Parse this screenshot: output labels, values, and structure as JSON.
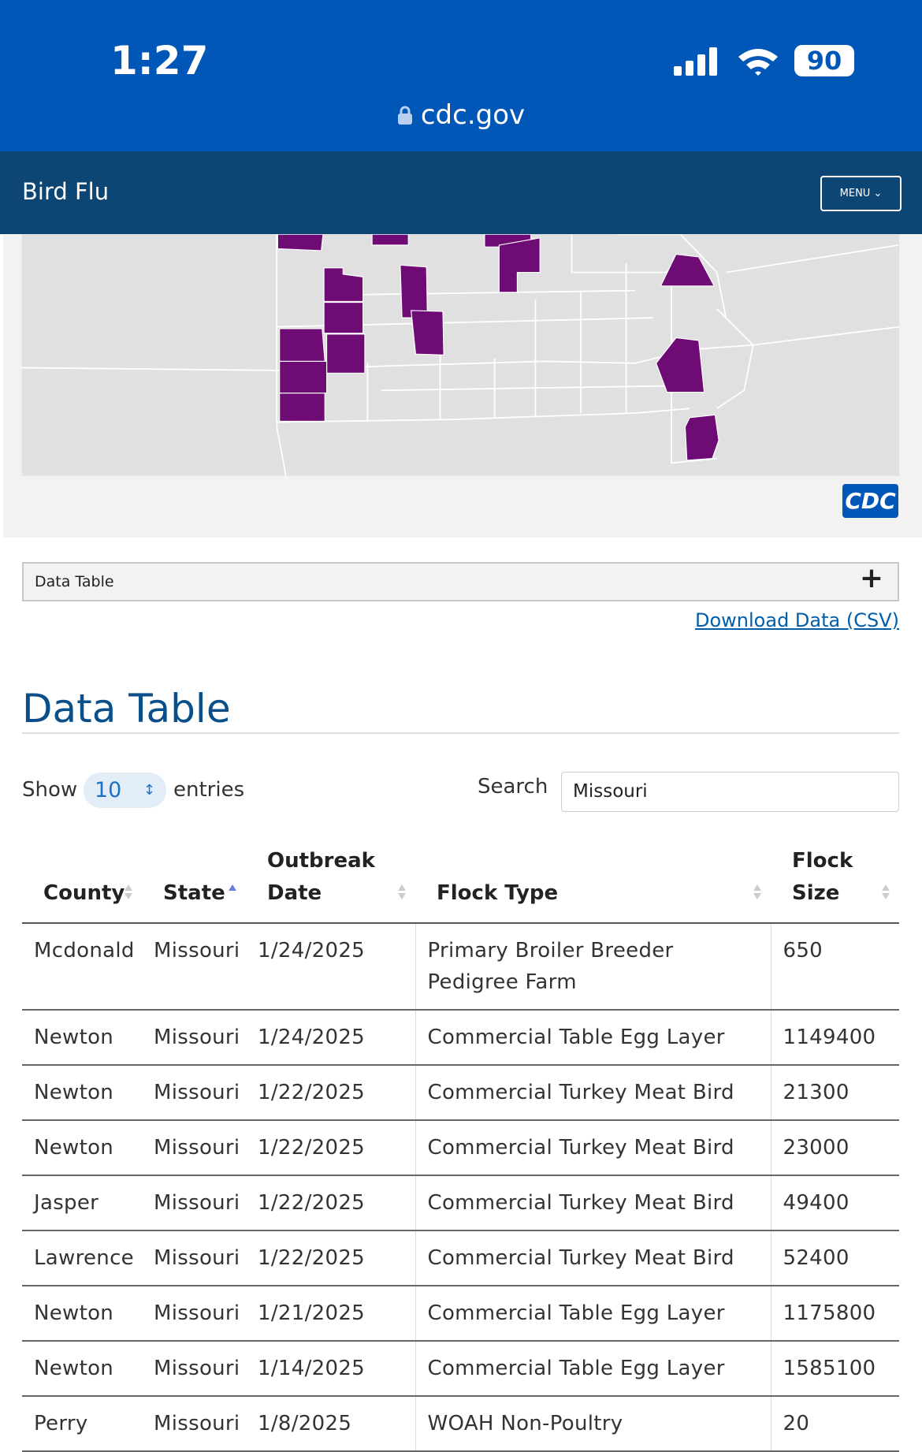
{
  "status_bar": {
    "time": "1:27",
    "battery": "90",
    "url": "cdc.gov"
  },
  "nav": {
    "title": "Bird Flu",
    "menu": "MENU"
  },
  "accordion": {
    "label": "Data Table",
    "toggle": "+"
  },
  "download_link": "Download Data (CSV)",
  "section_title": "Data Table",
  "controls": {
    "show": "Show",
    "entries_value": "10",
    "entries": "entries",
    "search_label": "Search",
    "search_value": "Missouri"
  },
  "table": {
    "headers": [
      "County",
      "State",
      "Outbreak Date",
      "Flock Type",
      "Flock Size"
    ],
    "rows": [
      [
        "Mcdonald",
        "Missouri",
        "1/24/2025",
        "Primary Broiler Breeder Pedigree Farm",
        "650"
      ],
      [
        "Newton",
        "Missouri",
        "1/24/2025",
        "Commercial Table Egg Layer",
        "1149400"
      ],
      [
        "Newton",
        "Missouri",
        "1/22/2025",
        "Commercial Turkey Meat Bird",
        "21300"
      ],
      [
        "Newton",
        "Missouri",
        "1/22/2025",
        "Commercial Turkey Meat Bird",
        "23000"
      ],
      [
        "Jasper",
        "Missouri",
        "1/22/2025",
        "Commercial Turkey Meat Bird",
        "49400"
      ],
      [
        "Lawrence",
        "Missouri",
        "1/22/2025",
        "Commercial Turkey Meat Bird",
        "52400"
      ],
      [
        "Newton",
        "Missouri",
        "1/21/2025",
        "Commercial Table Egg Layer",
        "1175800"
      ],
      [
        "Newton",
        "Missouri",
        "1/14/2025",
        "Commercial Table Egg Layer",
        "1585100"
      ],
      [
        "Perry",
        "Missouri",
        "1/8/2025",
        "WOAH Non-Poultry",
        "20"
      ]
    ]
  }
}
